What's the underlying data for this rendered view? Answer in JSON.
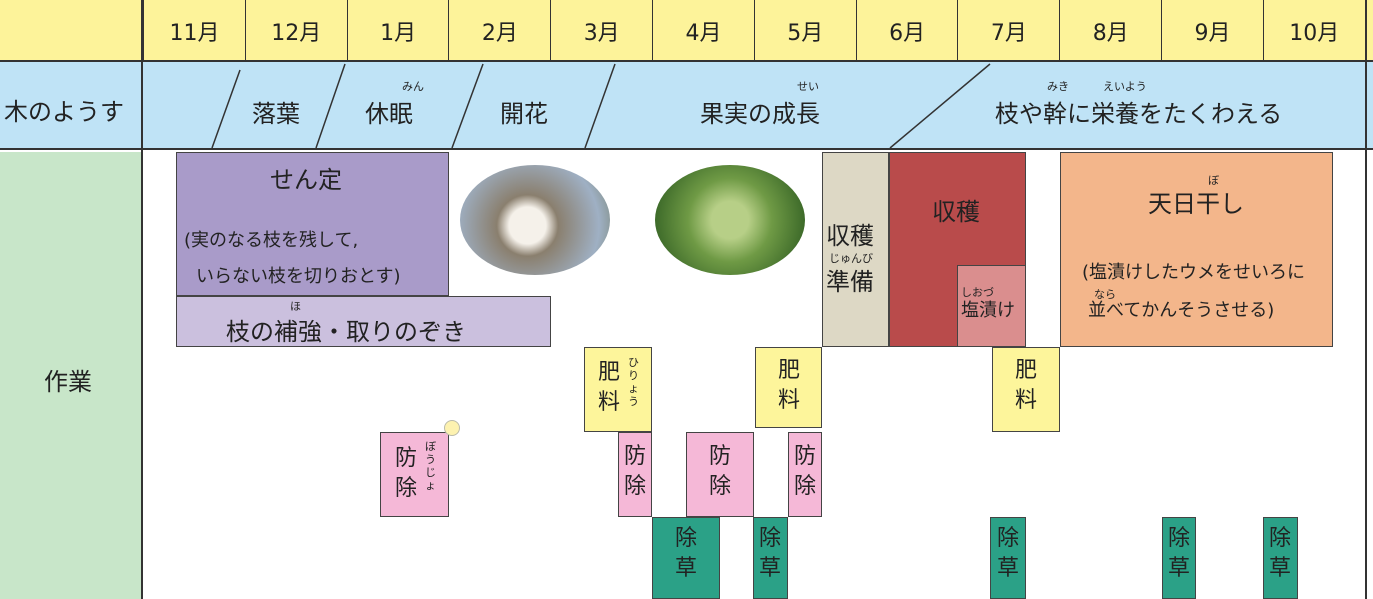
{
  "header": {
    "months": [
      "11月",
      "12月",
      "1月",
      "2月",
      "3月",
      "4月",
      "5月",
      "6月",
      "7月",
      "8月",
      "9月",
      "10月"
    ]
  },
  "tree_state": {
    "label": "木のようす",
    "stages": [
      {
        "text": "落葉"
      },
      {
        "text": "休眠",
        "ruby": "みん"
      },
      {
        "text": "開花"
      },
      {
        "text": "果実の成長",
        "ruby": "せい"
      },
      {
        "text": "枝や幹に栄養をたくわえる",
        "ruby": [
          "みき",
          "えいよう"
        ]
      }
    ]
  },
  "work": {
    "label": "作業",
    "tasks": [
      {
        "text": "せん定",
        "note": [
          "(実のなる枝を残して,",
          "いらない枝を切りおとす)"
        ]
      },
      {
        "text": "枝の補強・取りのぞき",
        "ruby": "ほ"
      },
      {
        "lines": [
          "収穫",
          "準備"
        ],
        "ruby": "じゅんび"
      },
      {
        "text": "収穫"
      },
      {
        "text": "塩漬け",
        "ruby": "しおづ"
      },
      {
        "text": "天日干し",
        "ruby": "ぼ",
        "note": [
          "(塩漬けしたウメをせいろに",
          "並べてかんそうさせる)"
        ],
        "note_ruby": "なら"
      },
      {
        "text": "肥料",
        "ruby": "ひりょう"
      },
      {
        "text": "肥料"
      },
      {
        "text": "肥料"
      },
      {
        "text": "防除",
        "ruby": "ぼうじょ"
      },
      {
        "text": "防除"
      },
      {
        "text": "防除"
      },
      {
        "text": "防除"
      },
      {
        "text": "除草"
      },
      {
        "text": "除草"
      },
      {
        "text": "除草"
      },
      {
        "text": "除草"
      },
      {
        "text": "除草"
      }
    ]
  }
}
